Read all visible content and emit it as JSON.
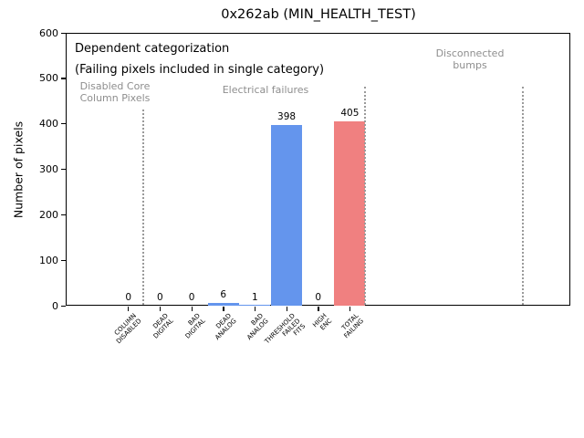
{
  "chart_data": {
    "type": "bar",
    "title": "0x262ab (MIN_HEALTH_TEST)",
    "xlabel": "",
    "ylabel": "Number of pixels",
    "ylim": [
      0,
      600
    ],
    "yticks": [
      0,
      100,
      200,
      300,
      400,
      500,
      600
    ],
    "grid": false,
    "legend": false,
    "categories": [
      "COLUMN\nDISABLED",
      "DEAD\nDIGITAL",
      "BAD\nDIGITAL",
      "DEAD\nANALOG",
      "BAD\nANALOG",
      "THRESHOLD\nFAILED\nFITS",
      "HIGH\nENC",
      "TOTAL\nFAILING"
    ],
    "values": [
      0,
      0,
      0,
      6,
      1,
      398,
      0,
      405
    ],
    "value_labels": [
      "0",
      "0",
      "0",
      "6",
      "1",
      "398",
      "0",
      "405"
    ],
    "bar_colors": [
      "#6495ed",
      "#6495ed",
      "#6495ed",
      "#6495ed",
      "#6495ed",
      "#6495ed",
      "#6495ed",
      "#f08080"
    ],
    "annotations": [
      {
        "text": "Dependent categorization",
        "color_role": "black"
      },
      {
        "text": "(Failing pixels included in single category)",
        "color_role": "black"
      },
      {
        "text": "Disabled Core\nColumn Pixels",
        "color_role": "gray"
      },
      {
        "text": "Electrical failures",
        "color_role": "gray"
      },
      {
        "text": "Disconnected\nbumps",
        "color_role": "gray"
      }
    ],
    "separator_lines": 3
  },
  "colors": {
    "bar_default": "#6495ed",
    "bar_total": "#f08080",
    "annotation_gray": "#8e8e8e",
    "separator_gray": "#9a9a9a",
    "axis": "#000000"
  }
}
